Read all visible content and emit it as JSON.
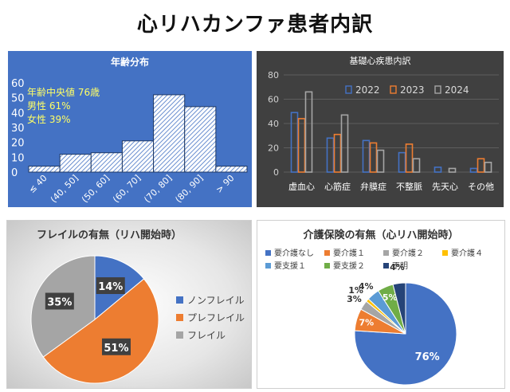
{
  "page": {
    "title": "心リハカンファ患者内訳"
  },
  "colors": {
    "blue": "#4472c4",
    "orange": "#ed7d31",
    "gray": "#a5a5a5",
    "yellow": "#ffc000",
    "lightblue": "#5b9bd5",
    "green": "#70ad47",
    "navy": "#264478"
  },
  "chart_data": [
    {
      "id": "age",
      "type": "bar",
      "title": "年齢分布",
      "categories": [
        "≤ 40",
        "(40, 50]",
        "(50, 60]",
        "(60, 70]",
        "(70, 80]",
        "(80, 90]",
        "> 90"
      ],
      "values": [
        4,
        12,
        13,
        21,
        52,
        44,
        4
      ],
      "ylim": [
        0,
        60
      ],
      "yticks": [
        0,
        10,
        20,
        30,
        40,
        50,
        60
      ],
      "annotations": [
        "年齢中央値 76歳",
        "男性 61%",
        "女性 39%"
      ],
      "grid": false
    },
    {
      "id": "disease",
      "type": "bar",
      "title": "基礎心疾患内訳",
      "categories": [
        "虚血心",
        "心筋症",
        "弁膜症",
        "不整脈",
        "先天心",
        "その他"
      ],
      "series": [
        {
          "name": "2022",
          "values": [
            49,
            28,
            26,
            16,
            4,
            3
          ]
        },
        {
          "name": "2023",
          "values": [
            44,
            31,
            24,
            23,
            0,
            11
          ]
        },
        {
          "name": "2024",
          "values": [
            66,
            47,
            18,
            11,
            3,
            8
          ]
        }
      ],
      "ylim": [
        0,
        80
      ],
      "yticks": [
        0,
        20,
        40,
        60,
        80
      ],
      "legend": "top",
      "grid": true
    },
    {
      "id": "frailty",
      "type": "pie",
      "title": "フレイルの有無（リハ開始時）",
      "labels": [
        "ノンフレイル",
        "プレフレイル",
        "フレイル"
      ],
      "values": [
        14,
        51,
        35
      ],
      "data_labels": [
        "14%",
        "51%",
        "35%"
      ],
      "legend": "right"
    },
    {
      "id": "care",
      "type": "pie",
      "title": "介護保険の有無（心リハ開始時）",
      "labels": [
        "要介護なし",
        "要介護１",
        "要介護２",
        "要介護４",
        "要支援１",
        "要支援２",
        "不明"
      ],
      "values": [
        76,
        7,
        3,
        1,
        4,
        5,
        4
      ],
      "data_labels": [
        "76%",
        "7%",
        "3%",
        "1%",
        "4%",
        "5%",
        "4%"
      ],
      "legend": "top"
    }
  ]
}
